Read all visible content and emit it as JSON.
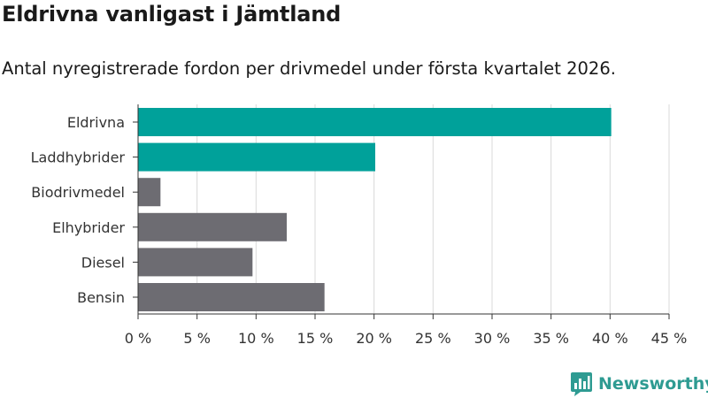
{
  "chart_data": {
    "type": "bar",
    "orientation": "horizontal",
    "title": "Eldrivna vanligast i Jämtland",
    "subtitle": "Antal nyregistrerade fordon per drivmedel under första kvartalet 2026.",
    "categories": [
      "Eldrivna",
      "Laddhybrider",
      "Biodrivmedel",
      "Elhybrider",
      "Diesel",
      "Bensin"
    ],
    "values": [
      40.1,
      20.1,
      1.9,
      12.6,
      9.7,
      15.8
    ],
    "highlighted": [
      true,
      true,
      false,
      false,
      false,
      false
    ],
    "x_ticks": [
      "0 %",
      "5 %",
      "10 %",
      "15 %",
      "20 %",
      "25 %",
      "30 %",
      "35 %",
      "40 %",
      "45 %"
    ],
    "xlim": [
      0,
      45
    ],
    "tick_step": 5,
    "xlabel": "",
    "ylabel": "",
    "grid": true,
    "colors": {
      "highlight": "#00a19a",
      "default": "#6d6c72",
      "grid": "#d9d9d9",
      "axis": "#333333"
    }
  },
  "branding": {
    "logo_text": "Newsworthy",
    "logo_color": "#2e9b92"
  }
}
